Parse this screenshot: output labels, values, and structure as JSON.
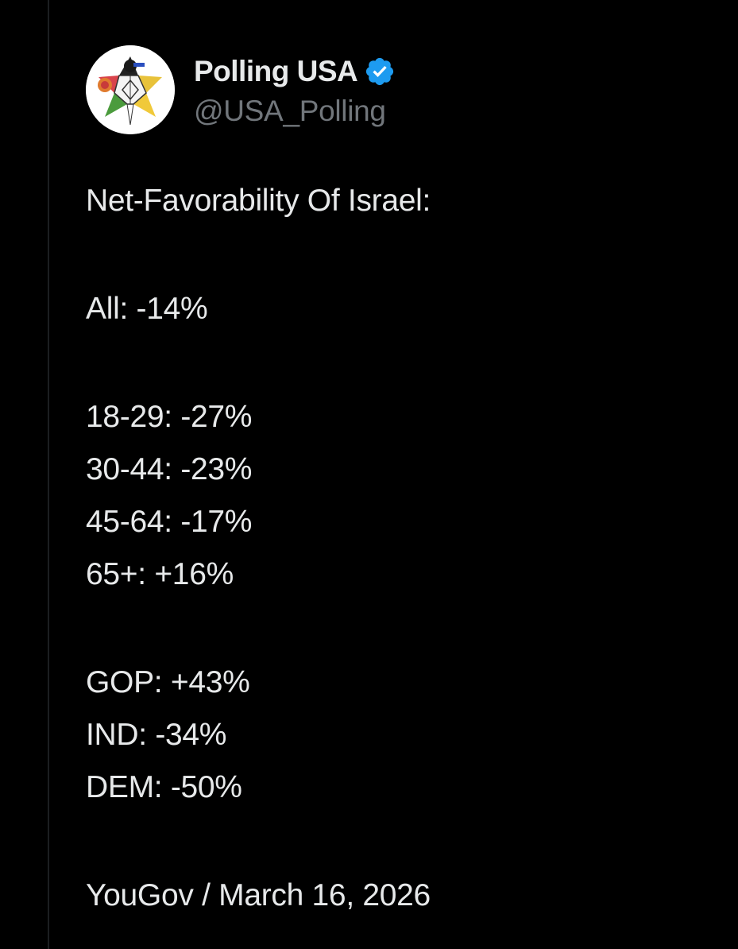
{
  "author": {
    "display_name": "Polling USA",
    "handle": "@USA_Polling",
    "verified": true,
    "verified_color": "#1d9bf0",
    "avatar_icon": "polling-usa-star-logo"
  },
  "post": {
    "title": "Net-Favorability Of Israel:",
    "overall": "All: -14%",
    "age_groups": [
      "18-29: -27%",
      "30-44: -23%",
      "45-64: -17%",
      "65+: +16%"
    ],
    "parties": [
      "GOP: +43%",
      "IND: -34%",
      "DEM: -50%"
    ],
    "source": "YouGov / March 16, 2026"
  },
  "colors": {
    "background": "#000000",
    "text": "#e7e9ea",
    "secondary_text": "#71767b"
  }
}
